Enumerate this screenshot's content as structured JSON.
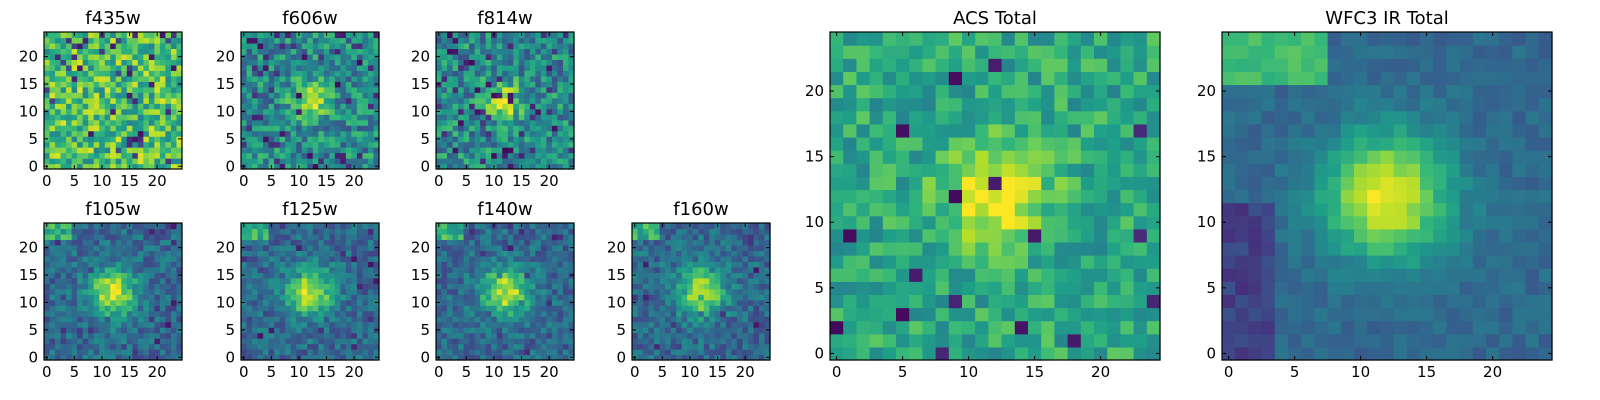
{
  "chart_data": [
    {
      "type": "heatmap",
      "title": "f435w",
      "image_size": 25,
      "pattern": "noise",
      "xticks": [
        "0",
        "5",
        "10",
        "15",
        "20"
      ],
      "yticks": [
        "0",
        "5",
        "10",
        "15",
        "20"
      ]
    },
    {
      "type": "heatmap",
      "title": "f606w",
      "image_size": 25,
      "pattern": "source_faint",
      "xticks": [
        "0",
        "5",
        "10",
        "15",
        "20"
      ],
      "yticks": [
        "0",
        "5",
        "10",
        "15",
        "20"
      ]
    },
    {
      "type": "heatmap",
      "title": "f814w",
      "image_size": 25,
      "pattern": "source_faint",
      "xticks": [
        "0",
        "5",
        "10",
        "15",
        "20"
      ],
      "yticks": [
        "0",
        "5",
        "10",
        "15",
        "20"
      ]
    },
    {
      "type": "heatmap",
      "title": "f105w",
      "image_size": 25,
      "pattern": "source",
      "xticks": [
        "0",
        "5",
        "10",
        "15",
        "20"
      ],
      "yticks": [
        "0",
        "5",
        "10",
        "15",
        "20"
      ]
    },
    {
      "type": "heatmap",
      "title": "f125w",
      "image_size": 25,
      "pattern": "source",
      "xticks": [
        "0",
        "5",
        "10",
        "15",
        "20"
      ],
      "yticks": [
        "0",
        "5",
        "10",
        "15",
        "20"
      ]
    },
    {
      "type": "heatmap",
      "title": "f140w",
      "image_size": 25,
      "pattern": "source",
      "xticks": [
        "0",
        "5",
        "10",
        "15",
        "20"
      ],
      "yticks": [
        "0",
        "5",
        "10",
        "15",
        "20"
      ]
    },
    {
      "type": "heatmap",
      "title": "f160w",
      "image_size": 25,
      "pattern": "source",
      "xticks": [
        "0",
        "5",
        "10",
        "15",
        "20"
      ],
      "yticks": [
        "0",
        "5",
        "10",
        "15",
        "20"
      ]
    },
    {
      "type": "heatmap",
      "title": "ACS Total",
      "image_size": 25,
      "pattern": "source_acs",
      "xticks": [
        "0",
        "5",
        "10",
        "15",
        "20"
      ],
      "yticks": [
        "0",
        "5",
        "10",
        "15",
        "20"
      ]
    },
    {
      "type": "heatmap",
      "title": "WFC3 IR Total",
      "image_size": 25,
      "pattern": "source_smooth",
      "xticks": [
        "0",
        "5",
        "10",
        "15",
        "20"
      ],
      "yticks": [
        "0",
        "5",
        "10",
        "15",
        "20"
      ]
    }
  ],
  "colors": {
    "viridis_stops": [
      "#440154",
      "#482878",
      "#3e4989",
      "#31688e",
      "#26828e",
      "#1f9e89",
      "#35b779",
      "#6ece58",
      "#b5de2b",
      "#fde725"
    ]
  }
}
